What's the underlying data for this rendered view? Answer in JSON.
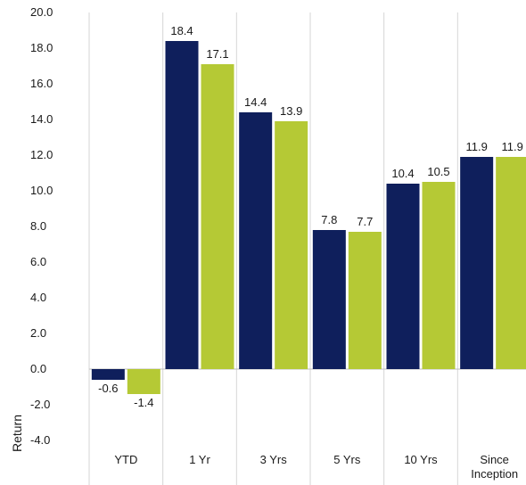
{
  "chart_data": {
    "type": "bar",
    "categories": [
      "YTD",
      "1 Yr",
      "3 Yrs",
      "5 Yrs",
      "10 Yrs",
      "Since Inception"
    ],
    "category_lines": [
      [
        "YTD"
      ],
      [
        "1 Yr"
      ],
      [
        "3 Yrs"
      ],
      [
        "5 Yrs"
      ],
      [
        "10 Yrs"
      ],
      [
        "Since",
        "Inception"
      ]
    ],
    "series": [
      {
        "values": [
          -0.6,
          18.4,
          14.4,
          7.8,
          10.4,
          11.9
        ],
        "color": "#0f1f5c"
      },
      {
        "values": [
          -1.4,
          17.1,
          13.9,
          7.7,
          10.5,
          11.9
        ],
        "color": "#b5c935"
      }
    ],
    "data_labels": [
      [
        "-0.6",
        "18.4",
        "14.4",
        "7.8",
        "10.4",
        "11.9"
      ],
      [
        "-1.4",
        "17.1",
        "13.9",
        "7.7",
        "10.5",
        "11.9"
      ]
    ],
    "ylabel": "Return",
    "ylim": [
      -4.0,
      20.0
    ],
    "yticks": [
      -4.0,
      -2.0,
      0.0,
      2.0,
      4.0,
      6.0,
      8.0,
      10.0,
      12.0,
      14.0,
      16.0,
      18.0,
      20.0
    ],
    "ytick_labels": [
      "-4.0",
      "-2.0",
      "0.0",
      "2.0",
      "4.0",
      "6.0",
      "8.0",
      "10.0",
      "12.0",
      "14.0",
      "16.0",
      "18.0",
      "20.0"
    ],
    "grid": "vertical separators only",
    "legend": "none"
  }
}
